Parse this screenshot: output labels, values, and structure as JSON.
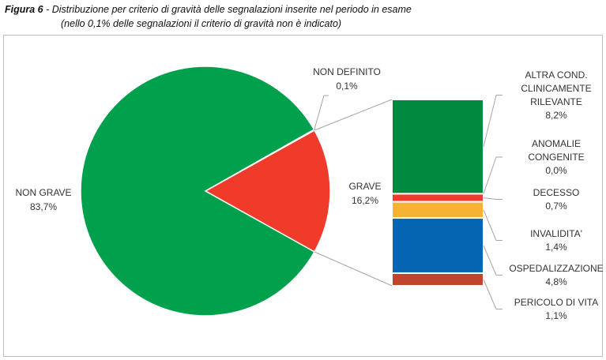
{
  "caption": {
    "figure_label": "Figura 6",
    "separator": " - ",
    "title": "Distribuzione per criterio di gravità delle segnalazioni inserite nel periodo in esame",
    "subtitle": "(nello 0,1% delle segnalazioni il criterio di gravità non è indicato)"
  },
  "chart_data": {
    "type": "bar-of-pie",
    "pie": {
      "slices": [
        {
          "name": "NON GRAVE",
          "value": 83.7,
          "label": "83,7%",
          "color": "#00a04c"
        },
        {
          "name": "GRAVE",
          "value": 16.2,
          "label": "16,2%",
          "color": "#f03a2a"
        },
        {
          "name": "NON DEFINITO",
          "value": 0.1,
          "label": "0,1%",
          "color": "#d9d9d9"
        }
      ]
    },
    "bar": {
      "parent_slice": "GRAVE",
      "segments": [
        {
          "name": "ALTRA COND. CLINICAMENTE RILEVANTE",
          "lines": [
            "ALTRA COND.",
            "CLINICAMENTE",
            "RILEVANTE"
          ],
          "value": 8.2,
          "label": "8,2%",
          "color": "#00893f"
        },
        {
          "name": "ANOMALIE CONGENITE",
          "lines": [
            "ANOMALIE",
            "CONGENITE"
          ],
          "value": 0.0,
          "label": "0,0%",
          "color": "#9e9e9e"
        },
        {
          "name": "DECESSO",
          "lines": [
            "DECESSO"
          ],
          "value": 0.7,
          "label": "0,7%",
          "color": "#f03a2a"
        },
        {
          "name": "INVALIDITA'",
          "lines": [
            "INVALIDITA'"
          ],
          "value": 1.4,
          "label": "1,4%",
          "color": "#f5b335"
        },
        {
          "name": "OSPEDALIZZAZIONE",
          "lines": [
            "OSPEDALIZZAZIONE"
          ],
          "value": 4.8,
          "label": "4,8%",
          "color": "#0565b3"
        },
        {
          "name": "PERICOLO DI VITA",
          "lines": [
            "PERICOLO DI VITA"
          ],
          "value": 1.1,
          "label": "1,1%",
          "color": "#c0462b"
        }
      ]
    }
  }
}
